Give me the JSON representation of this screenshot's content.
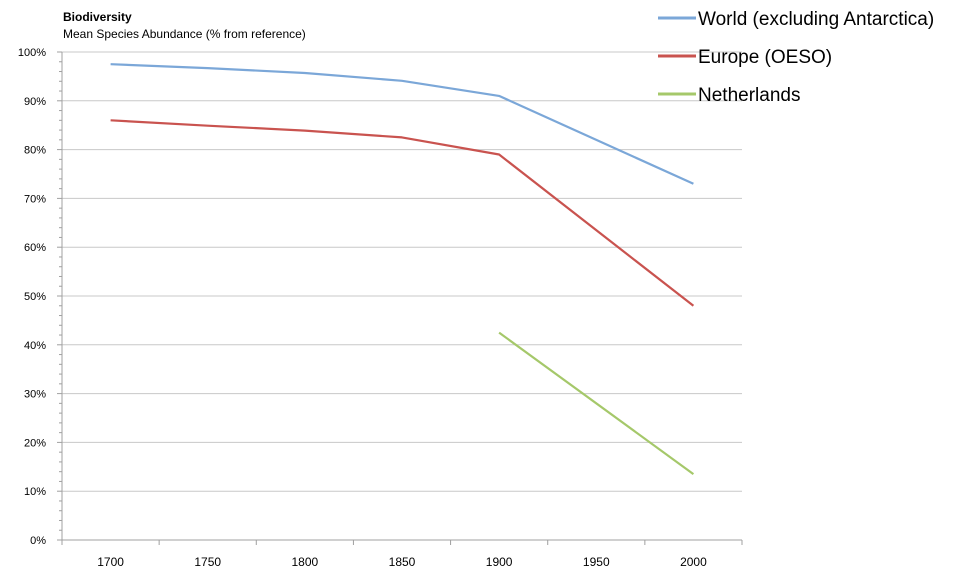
{
  "chart_data": {
    "type": "line",
    "title": "Biodiversity",
    "subtitle": "Mean Species Abundance (% from reference)",
    "xlabel": "",
    "ylabel": "",
    "x_ticks": [
      "1700",
      "1750",
      "1800",
      "1850",
      "1900",
      "1950",
      "2000"
    ],
    "y_ticks": [
      "0%",
      "10%",
      "20%",
      "30%",
      "40%",
      "50%",
      "60%",
      "70%",
      "80%",
      "90%",
      "100%"
    ],
    "xlim": [
      1675,
      2025
    ],
    "ylim": [
      0,
      100
    ],
    "grid": "horizontal",
    "legend_position": "top-right",
    "series": [
      {
        "name": "World (excluding Antarctica)",
        "color": "#7ba7d8",
        "x": [
          1700,
          1750,
          1800,
          1850,
          1900,
          2000
        ],
        "y": [
          97.5,
          96.7,
          95.7,
          94.1,
          91,
          73
        ]
      },
      {
        "name": "Europe (OESO)",
        "color": "#c9534f",
        "x": [
          1700,
          1750,
          1800,
          1850,
          1900,
          2000
        ],
        "y": [
          86,
          84.9,
          83.9,
          82.5,
          79,
          48
        ]
      },
      {
        "name": "Netherlands",
        "color": "#a5c86a",
        "x": [
          1900,
          2000
        ],
        "y": [
          42.5,
          13.5
        ]
      }
    ]
  }
}
